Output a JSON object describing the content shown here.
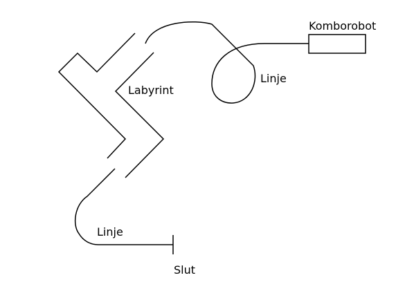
{
  "labels": {
    "robot": "Komborobot",
    "line_top": "Linje",
    "labyrinth": "Labyrint",
    "line_bottom": "Linje",
    "finish": "Slut"
  },
  "colors": {
    "stroke": "#000000",
    "background": "#ffffff"
  }
}
